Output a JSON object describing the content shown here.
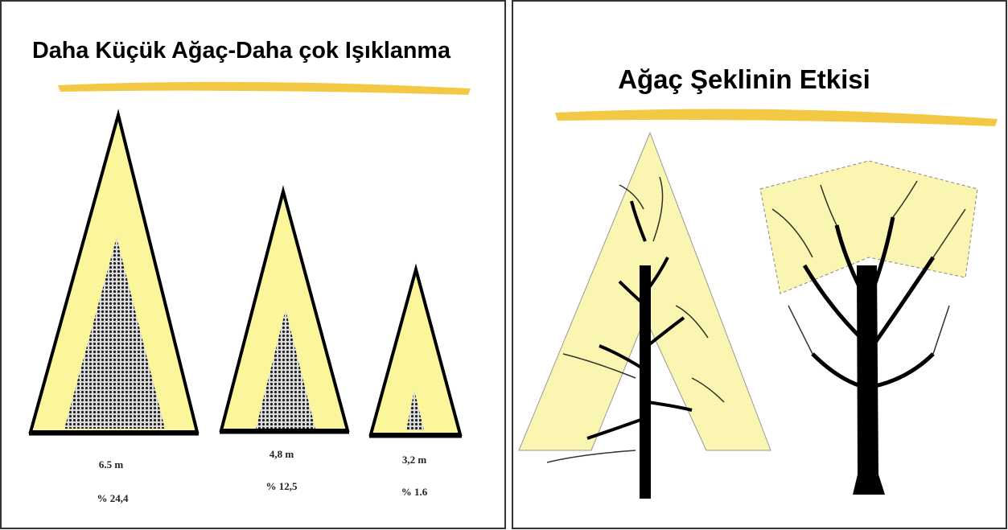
{
  "left_slide": {
    "title": "Daha Küçük Ağaç-Daha çok Işıklanma",
    "trees": [
      {
        "height": "6.5 m",
        "percent": "% 24,4"
      },
      {
        "height": "4,8 m",
        "percent": "% 12,5"
      },
      {
        "height": "3,2 m",
        "percent": "% 1.6"
      }
    ]
  },
  "right_slide": {
    "title": "Ağaç Şeklinin Etkisi"
  }
}
